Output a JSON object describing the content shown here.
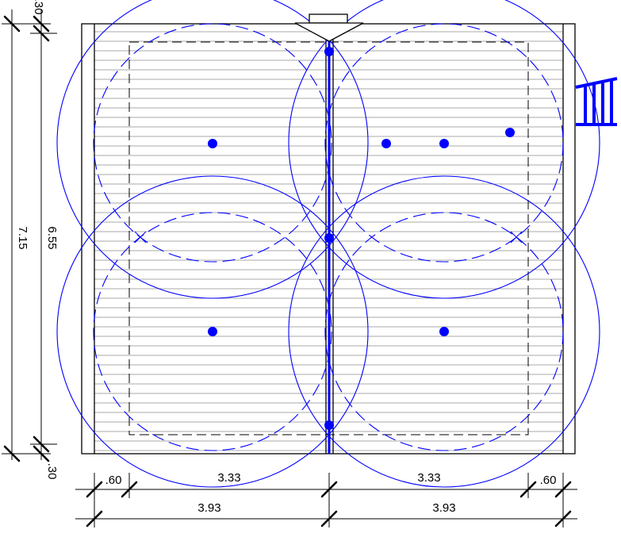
{
  "dimensions": {
    "top_bottom_margin": ".30",
    "inner_height": "6.55",
    "total_height": "7.15",
    "edge_offset": ".60",
    "inner_span": "3.33",
    "half_span": "3.93"
  },
  "colors": {
    "coverage": "#0000ff",
    "outline": "#000000",
    "hatch": "#555555"
  }
}
